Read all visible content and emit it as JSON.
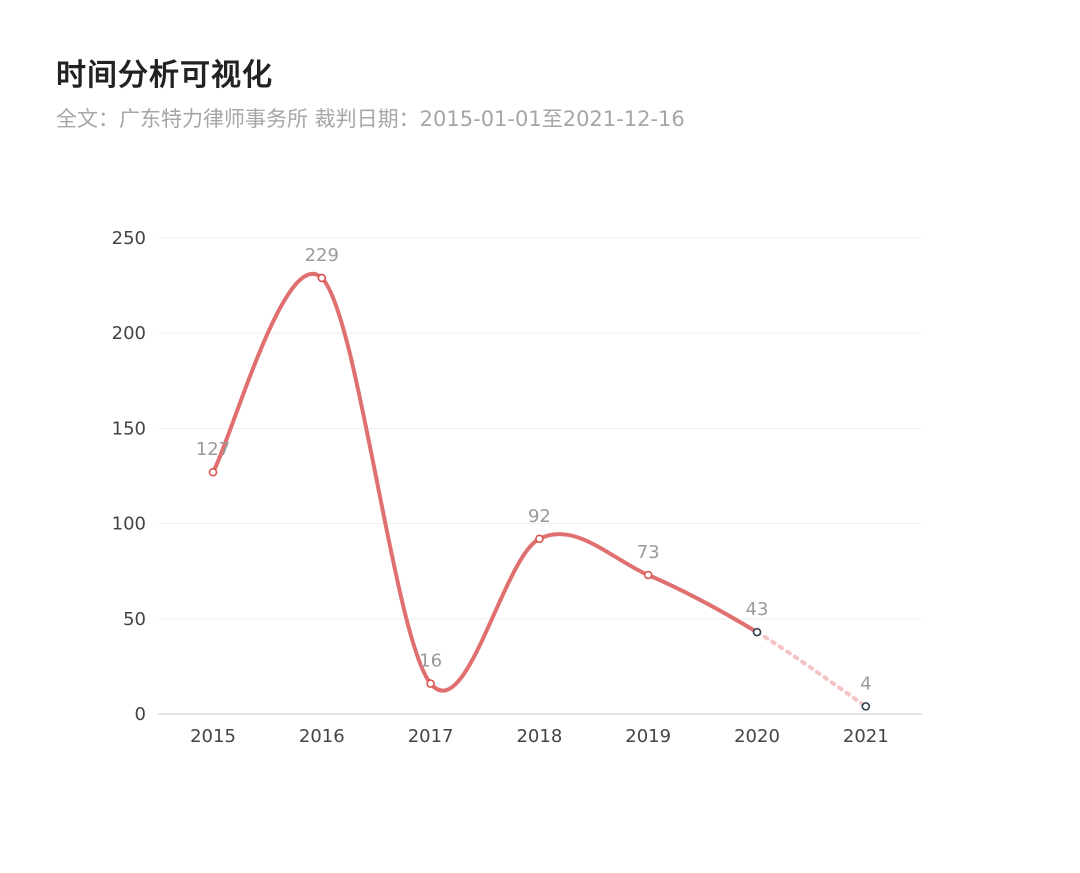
{
  "header": {
    "title": "时间分析可视化",
    "subtitle": "全文：广东特力律师事务所  裁判日期：2015-01-01至2021-12-16"
  },
  "chart_data": {
    "type": "line",
    "categories": [
      "2015",
      "2016",
      "2017",
      "2018",
      "2019",
      "2020",
      "2021"
    ],
    "values": [
      127,
      229,
      16,
      92,
      73,
      43,
      4
    ],
    "ylim": [
      0,
      250
    ],
    "yticks": [
      0,
      50,
      100,
      150,
      200,
      250
    ],
    "grid": true,
    "line_color": "#e07070",
    "dashed_tail_color": "#f4c4c4",
    "partial_year_marker_color": "#2c3e50",
    "partial_from_index": 5
  }
}
